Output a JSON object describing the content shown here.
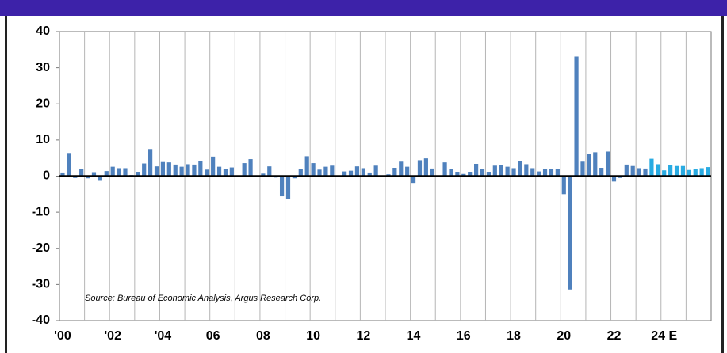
{
  "chart_data": {
    "type": "bar",
    "annotation": "Source: Bureau of Economic Analysis, Argus Research Corp.",
    "categories": [
      "'00",
      null,
      null,
      null,
      null,
      null,
      null,
      null,
      "'02",
      null,
      null,
      null,
      null,
      null,
      null,
      null,
      "'04",
      null,
      null,
      null,
      null,
      null,
      null,
      null,
      "06",
      null,
      null,
      null,
      null,
      null,
      null,
      null,
      "08",
      null,
      null,
      null,
      null,
      null,
      null,
      null,
      "10",
      null,
      null,
      null,
      null,
      null,
      null,
      null,
      "12",
      null,
      null,
      null,
      null,
      null,
      null,
      null,
      "14",
      null,
      null,
      null,
      null,
      null,
      null,
      null,
      "16",
      null,
      null,
      null,
      null,
      null,
      null,
      null,
      "18",
      null,
      null,
      null,
      null,
      null,
      null,
      null,
      "20",
      null,
      null,
      null,
      null,
      null,
      null,
      null,
      "22",
      null,
      null,
      null,
      null,
      null,
      null,
      null,
      "24 E",
      null,
      null,
      null,
      null,
      null,
      null,
      null
    ],
    "values": [
      1.0,
      6.4,
      -0.5,
      2.0,
      -0.6,
      1.1,
      -1.3,
      1.4,
      2.6,
      2.2,
      2.2,
      0.3,
      1.2,
      3.5,
      7.5,
      2.7,
      3.9,
      3.8,
      3.2,
      2.6,
      3.3,
      3.2,
      4.1,
      1.8,
      5.4,
      2.6,
      2.0,
      2.4,
      0.2,
      3.6,
      4.7,
      0.1,
      0.7,
      2.7,
      -0.4,
      -5.6,
      -6.4,
      -0.6,
      2.0,
      5.5,
      3.6,
      1.8,
      2.6,
      2.9,
      -0.1,
      1.3,
      1.5,
      2.7,
      2.2,
      1.0,
      2.9,
      0.1,
      0.5,
      2.3,
      4.0,
      2.6,
      -1.9,
      4.4,
      4.9,
      2.1,
      0.2,
      3.8,
      2.0,
      1.2,
      0.6,
      1.2,
      3.4,
      2.0,
      1.2,
      2.9,
      3.0,
      2.6,
      2.2,
      4.1,
      3.3,
      2.2,
      1.3,
      1.9,
      1.9,
      2.0,
      -5.0,
      -31.4,
      33.1,
      4.0,
      6.2,
      6.6,
      2.3,
      6.8,
      -1.5,
      -0.5,
      3.2,
      2.8,
      2.2,
      2.1,
      4.8,
      3.3,
      1.6,
      3.0,
      2.8,
      2.8,
      1.7,
      2.0,
      2.2,
      2.5
    ],
    "colors": [
      "#4f81bd",
      "#4f81bd",
      "#4f81bd",
      "#4f81bd",
      "#4f81bd",
      "#4f81bd",
      "#4f81bd",
      "#4f81bd",
      "#4f81bd",
      "#4f81bd",
      "#4f81bd",
      "#4f81bd",
      "#4f81bd",
      "#4f81bd",
      "#4f81bd",
      "#4f81bd",
      "#4f81bd",
      "#4f81bd",
      "#4f81bd",
      "#4f81bd",
      "#4f81bd",
      "#4f81bd",
      "#4f81bd",
      "#4f81bd",
      "#4f81bd",
      "#4f81bd",
      "#4f81bd",
      "#4f81bd",
      "#4f81bd",
      "#4f81bd",
      "#4f81bd",
      "#4f81bd",
      "#4f81bd",
      "#4f81bd",
      "#4f81bd",
      "#4f81bd",
      "#4f81bd",
      "#4f81bd",
      "#4f81bd",
      "#4f81bd",
      "#4f81bd",
      "#4f81bd",
      "#4f81bd",
      "#4f81bd",
      "#4f81bd",
      "#4f81bd",
      "#4f81bd",
      "#4f81bd",
      "#4f81bd",
      "#4f81bd",
      "#4f81bd",
      "#4f81bd",
      "#4f81bd",
      "#4f81bd",
      "#4f81bd",
      "#4f81bd",
      "#4f81bd",
      "#4f81bd",
      "#4f81bd",
      "#4f81bd",
      "#4f81bd",
      "#4f81bd",
      "#4f81bd",
      "#4f81bd",
      "#4f81bd",
      "#4f81bd",
      "#4f81bd",
      "#4f81bd",
      "#4f81bd",
      "#4f81bd",
      "#4f81bd",
      "#4f81bd",
      "#4f81bd",
      "#4f81bd",
      "#4f81bd",
      "#4f81bd",
      "#4f81bd",
      "#4f81bd",
      "#4f81bd",
      "#4f81bd",
      "#4f81bd",
      "#4f81bd",
      "#4f81bd",
      "#4f81bd",
      "#4f81bd",
      "#4f81bd",
      "#4f81bd",
      "#4f81bd",
      "#4f81bd",
      "#4f81bd",
      "#4f81bd",
      "#4f81bd",
      "#4f81bd",
      "#4f81bd",
      "#29abe2",
      "#29abe2",
      "#29abe2",
      "#29abe2",
      "#29abe2",
      "#29abe2",
      "#29abe2",
      "#29abe2",
      "#29abe2",
      "#29abe2"
    ],
    "ylim": [
      -40,
      40
    ],
    "yticks": [
      -40,
      -30,
      -20,
      -10,
      0,
      10,
      20,
      30,
      40
    ],
    "grid": true
  }
}
